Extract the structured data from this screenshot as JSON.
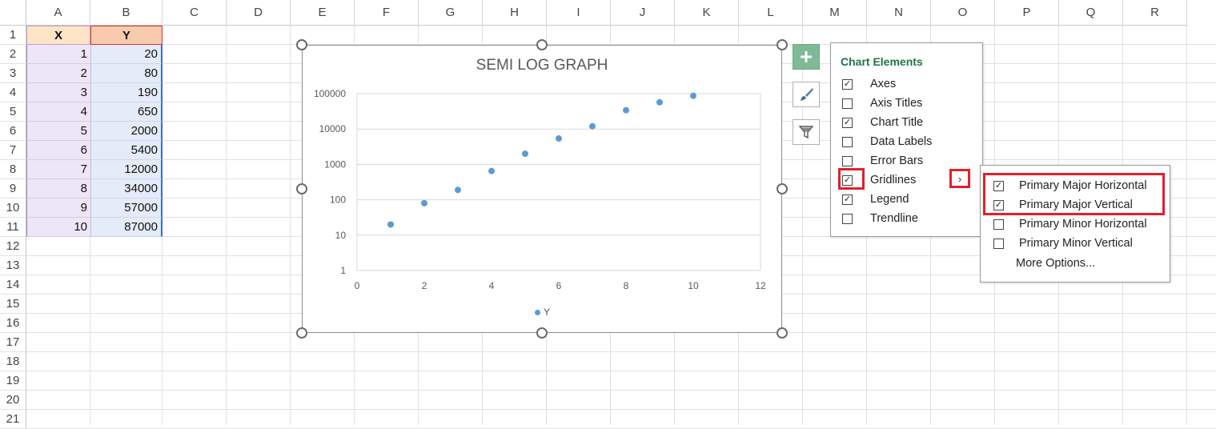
{
  "columns": [
    "A",
    "B",
    "C",
    "D",
    "E",
    "F",
    "G",
    "H",
    "I",
    "J",
    "K",
    "L",
    "M",
    "N",
    "O",
    "P",
    "Q",
    "R"
  ],
  "rows": [
    "1",
    "2",
    "3",
    "4",
    "5",
    "6",
    "7",
    "8",
    "9",
    "10",
    "11",
    "12",
    "13",
    "14",
    "15",
    "16",
    "17",
    "18",
    "19",
    "20",
    "21"
  ],
  "table": {
    "header_x": "X",
    "header_y": "Y",
    "x": [
      "1",
      "2",
      "3",
      "4",
      "5",
      "6",
      "7",
      "8",
      "9",
      "10"
    ],
    "y": [
      "20",
      "80",
      "190",
      "650",
      "2000",
      "5400",
      "12000",
      "34000",
      "57000",
      "87000"
    ]
  },
  "chart_data": {
    "type": "scatter",
    "title": "SEMI LOG GRAPH",
    "x": [
      1,
      2,
      3,
      4,
      5,
      6,
      7,
      8,
      9,
      10
    ],
    "y": [
      20,
      80,
      190,
      650,
      2000,
      5400,
      12000,
      34000,
      57000,
      87000
    ],
    "series": [
      {
        "name": "Y",
        "color": "#5b9bd5"
      }
    ],
    "xlim": [
      0,
      12
    ],
    "x_ticks": [
      "0",
      "2",
      "4",
      "6",
      "8",
      "10",
      "12"
    ],
    "y_scale": "log",
    "ylim": [
      1,
      100000
    ],
    "y_ticks": [
      "1",
      "10",
      "100",
      "1000",
      "10000",
      "100000"
    ],
    "grid": "horizontal",
    "legend_position": "bottom"
  },
  "side_buttons": {
    "plus": "plus-icon",
    "style": "paintbrush-icon",
    "filter": "filter-icon"
  },
  "chart_elements": {
    "title": "Chart Elements",
    "items": [
      {
        "label": "Axes",
        "checked": true
      },
      {
        "label": "Axis Titles",
        "checked": false
      },
      {
        "label": "Chart Title",
        "checked": true
      },
      {
        "label": "Data Labels",
        "checked": false
      },
      {
        "label": "Error Bars",
        "checked": false
      },
      {
        "label": "Gridlines",
        "checked": true
      },
      {
        "label": "Legend",
        "checked": true
      },
      {
        "label": "Trendline",
        "checked": false
      }
    ],
    "arrow": "›"
  },
  "gridlines_menu": {
    "items": [
      {
        "label": "Primary Major Horizontal",
        "checked": true
      },
      {
        "label": "Primary Major Vertical",
        "checked": true
      },
      {
        "label": "Primary Minor Horizontal",
        "checked": false
      },
      {
        "label": "Primary Minor Vertical",
        "checked": false
      }
    ],
    "more": "More Options..."
  },
  "accent_colors": {
    "excel_green": "#217346",
    "highlight_red": "#e0202b",
    "marker_blue": "#5b9bd5"
  }
}
